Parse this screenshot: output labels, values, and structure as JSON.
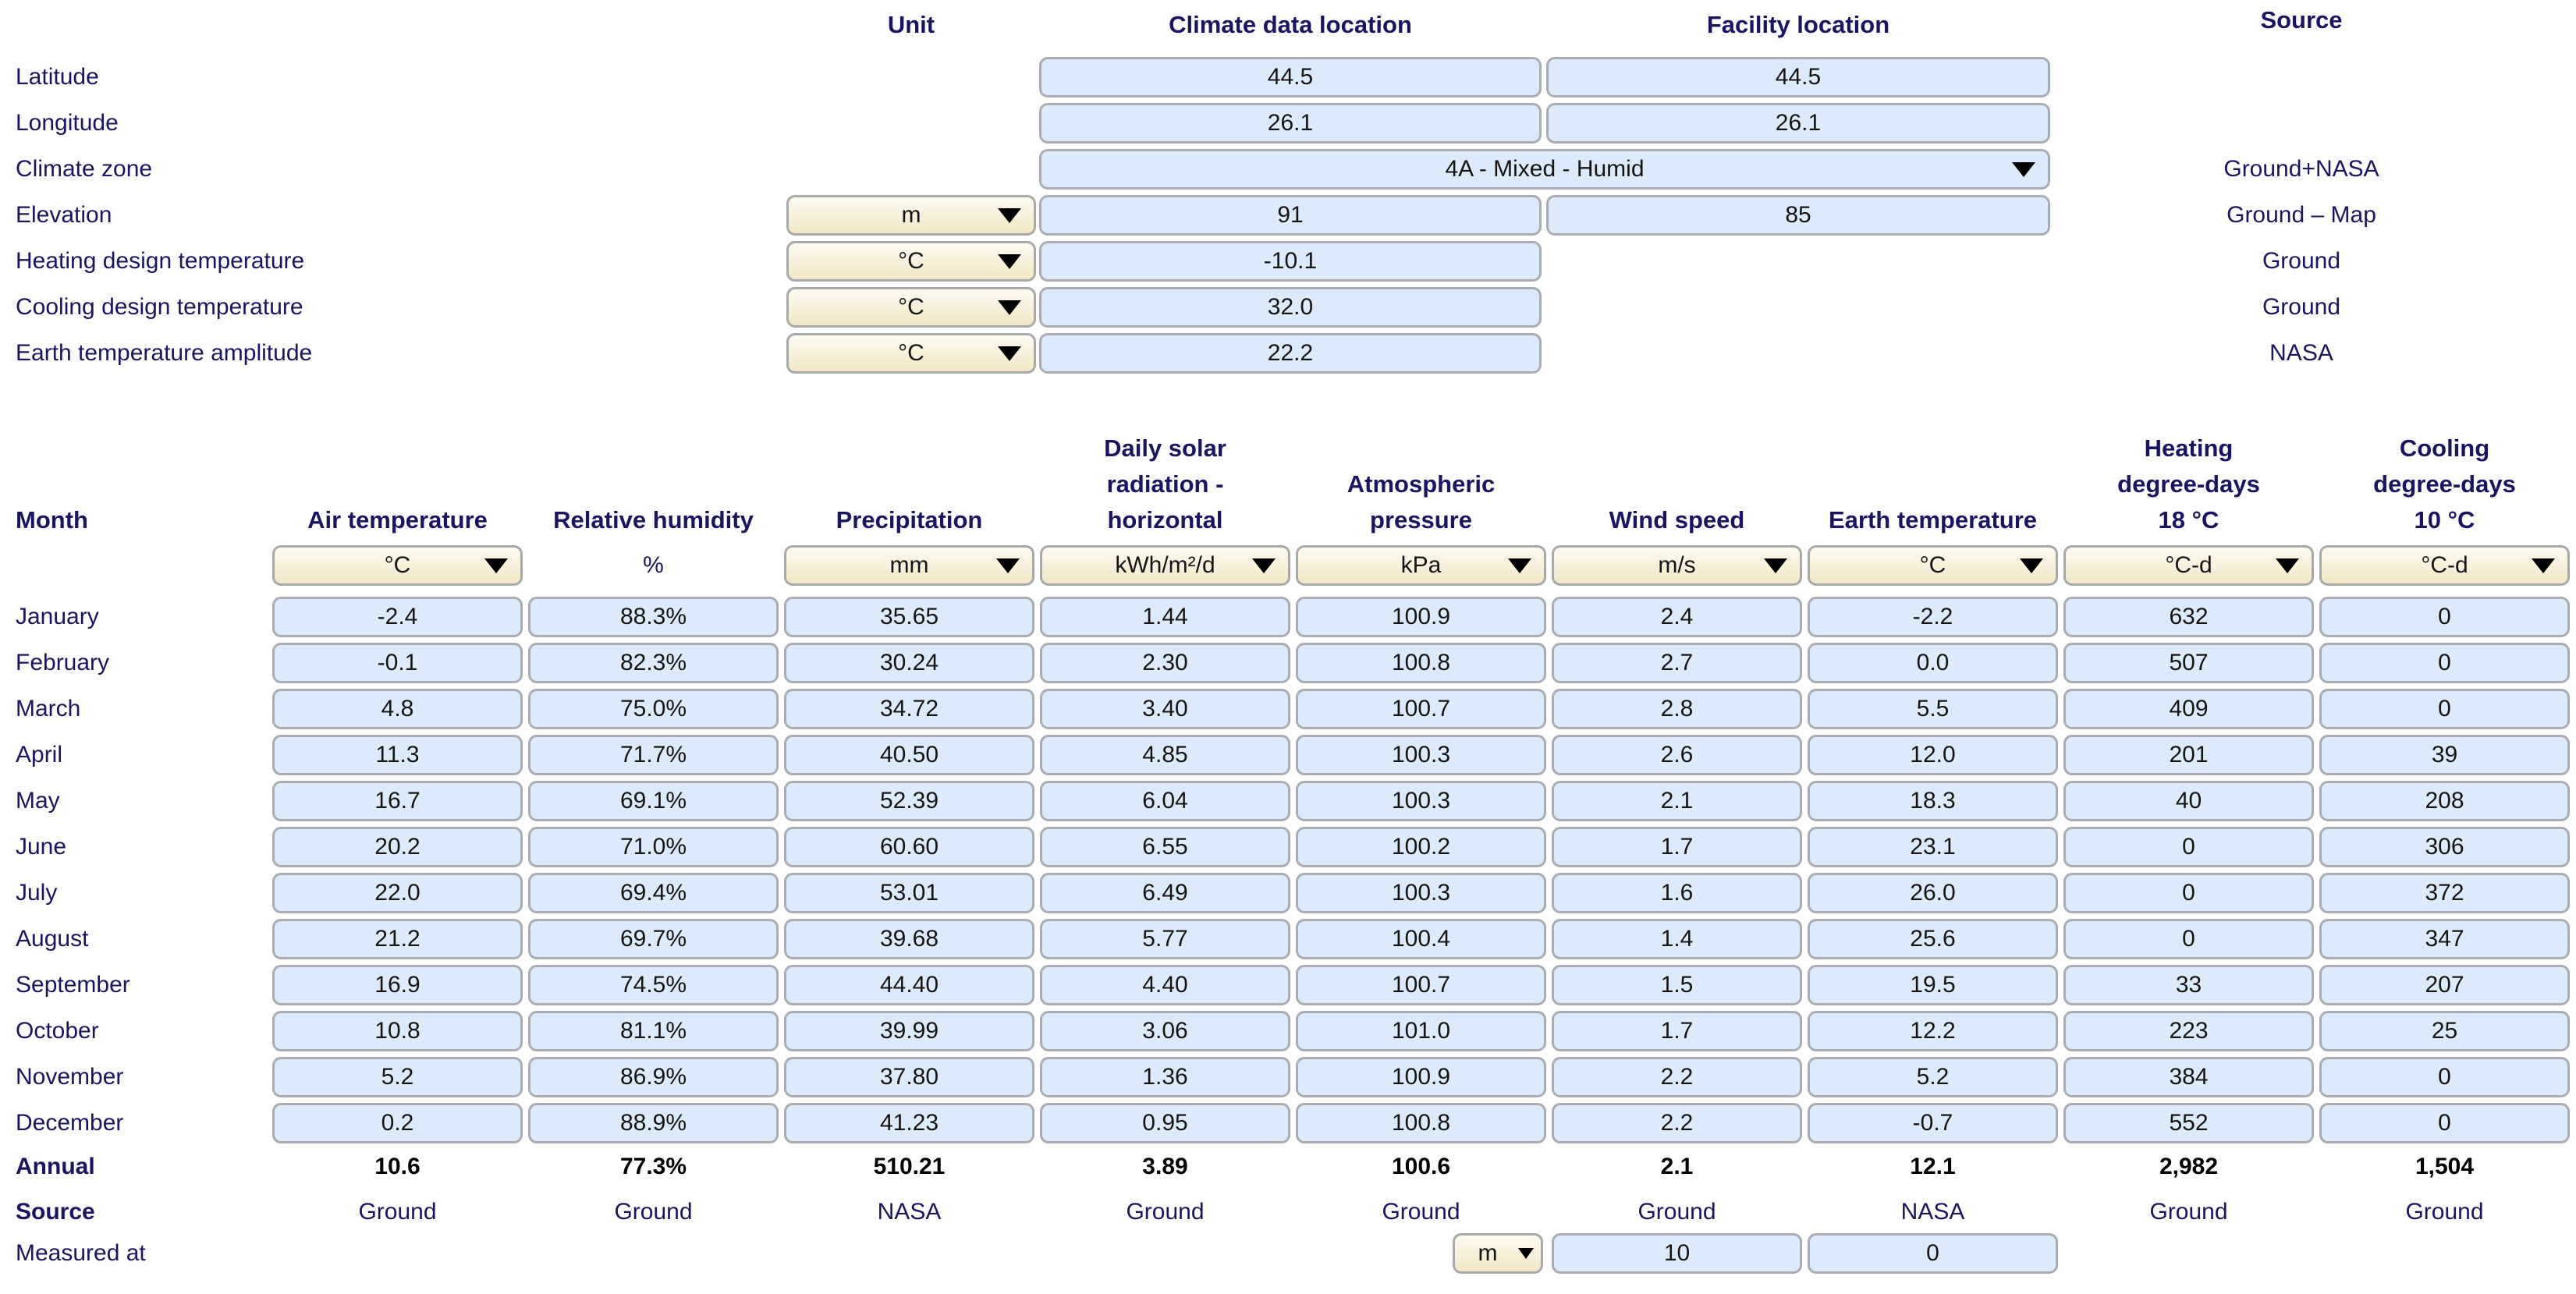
{
  "location_section": {
    "headers": {
      "unit": "Unit",
      "climate": "Climate data location",
      "facility": "Facility location",
      "source": "Source"
    },
    "rows": [
      {
        "key": "latitude",
        "label": "Latitude",
        "unit": null,
        "climate": "44.5",
        "facility": "44.5",
        "source": null
      },
      {
        "key": "longitude",
        "label": "Longitude",
        "unit": null,
        "climate": "26.1",
        "facility": "26.1",
        "source": null
      },
      {
        "key": "climate_zone",
        "label": "Climate zone",
        "unit": null,
        "combined": "4A - Mixed - Humid",
        "source": "Ground+NASA"
      },
      {
        "key": "elevation",
        "label": "Elevation",
        "unit": "m",
        "climate": "91",
        "facility": "85",
        "source": "Ground – Map"
      },
      {
        "key": "heating_design_temperature",
        "label": "Heating design temperature",
        "unit": "°C",
        "climate": "-10.1",
        "facility": null,
        "source": "Ground"
      },
      {
        "key": "cooling_design_temperature",
        "label": "Cooling design temperature",
        "unit": "°C",
        "climate": "32.0",
        "facility": null,
        "source": "Ground"
      },
      {
        "key": "earth_temperature_amplitude",
        "label": "Earth temperature amplitude",
        "unit": "°C",
        "climate": "22.2",
        "facility": null,
        "source": "NASA"
      }
    ]
  },
  "climate_table": {
    "month_header": "Month",
    "annual_label": "Annual",
    "source_label": "Source",
    "measured_at_label": "Measured at",
    "columns": [
      {
        "key": "air_temperature",
        "lines": [
          "Air temperature"
        ],
        "unit": "°C",
        "unit_dropdown": true
      },
      {
        "key": "relative_humidity",
        "lines": [
          "Relative humidity"
        ],
        "unit": "%",
        "unit_dropdown": false
      },
      {
        "key": "precipitation",
        "lines": [
          "Precipitation"
        ],
        "unit": "mm",
        "unit_dropdown": true
      },
      {
        "key": "daily_solar_radiation_horizontal",
        "lines": [
          "Daily solar",
          "radiation -",
          "horizontal"
        ],
        "unit": "kWh/m²/d",
        "unit_dropdown": true
      },
      {
        "key": "atmospheric_pressure",
        "lines": [
          "Atmospheric",
          "pressure"
        ],
        "unit": "kPa",
        "unit_dropdown": true
      },
      {
        "key": "wind_speed",
        "lines": [
          "Wind speed"
        ],
        "unit": "m/s",
        "unit_dropdown": true
      },
      {
        "key": "earth_temperature",
        "lines": [
          "Earth temperature"
        ],
        "unit": "°C",
        "unit_dropdown": true
      },
      {
        "key": "heating_degree_days",
        "lines": [
          "Heating",
          "degree-days",
          "18 °C"
        ],
        "unit": "°C-d",
        "unit_dropdown": true
      },
      {
        "key": "cooling_degree_days",
        "lines": [
          "Cooling",
          "degree-days",
          "10 °C"
        ],
        "unit": "°C-d",
        "unit_dropdown": true
      }
    ],
    "months": [
      "January",
      "February",
      "March",
      "April",
      "May",
      "June",
      "July",
      "August",
      "September",
      "October",
      "November",
      "December"
    ],
    "rows": [
      [
        "-2.4",
        "88.3%",
        "35.65",
        "1.44",
        "100.9",
        "2.4",
        "-2.2",
        "632",
        "0"
      ],
      [
        "-0.1",
        "82.3%",
        "30.24",
        "2.30",
        "100.8",
        "2.7",
        "0.0",
        "507",
        "0"
      ],
      [
        "4.8",
        "75.0%",
        "34.72",
        "3.40",
        "100.7",
        "2.8",
        "5.5",
        "409",
        "0"
      ],
      [
        "11.3",
        "71.7%",
        "40.50",
        "4.85",
        "100.3",
        "2.6",
        "12.0",
        "201",
        "39"
      ],
      [
        "16.7",
        "69.1%",
        "52.39",
        "6.04",
        "100.3",
        "2.1",
        "18.3",
        "40",
        "208"
      ],
      [
        "20.2",
        "71.0%",
        "60.60",
        "6.55",
        "100.2",
        "1.7",
        "23.1",
        "0",
        "306"
      ],
      [
        "22.0",
        "69.4%",
        "53.01",
        "6.49",
        "100.3",
        "1.6",
        "26.0",
        "0",
        "372"
      ],
      [
        "21.2",
        "69.7%",
        "39.68",
        "5.77",
        "100.4",
        "1.4",
        "25.6",
        "0",
        "347"
      ],
      [
        "16.9",
        "74.5%",
        "44.40",
        "4.40",
        "100.7",
        "1.5",
        "19.5",
        "33",
        "207"
      ],
      [
        "10.8",
        "81.1%",
        "39.99",
        "3.06",
        "101.0",
        "1.7",
        "12.2",
        "223",
        "25"
      ],
      [
        "5.2",
        "86.9%",
        "37.80",
        "1.36",
        "100.9",
        "2.2",
        "5.2",
        "384",
        "0"
      ],
      [
        "0.2",
        "88.9%",
        "41.23",
        "0.95",
        "100.8",
        "2.2",
        "-0.7",
        "552",
        "0"
      ]
    ],
    "annual": [
      "10.6",
      "77.3%",
      "510.21",
      "3.89",
      "100.6",
      "2.1",
      "12.1",
      "2,982",
      "1,504"
    ],
    "source": [
      "Ground",
      "Ground",
      "NASA",
      "Ground",
      "Ground",
      "Ground",
      "NASA",
      "Ground",
      "Ground"
    ],
    "measured_at": {
      "unit": "m",
      "wind_speed_height": "10",
      "earth_temperature_height": "0"
    }
  },
  "colors": {
    "navy_text": "#1b1464",
    "cell_blue": "#dcebfb",
    "dropdown_tan": "#f2e6c6",
    "border_gray": "#a9a9a9"
  }
}
